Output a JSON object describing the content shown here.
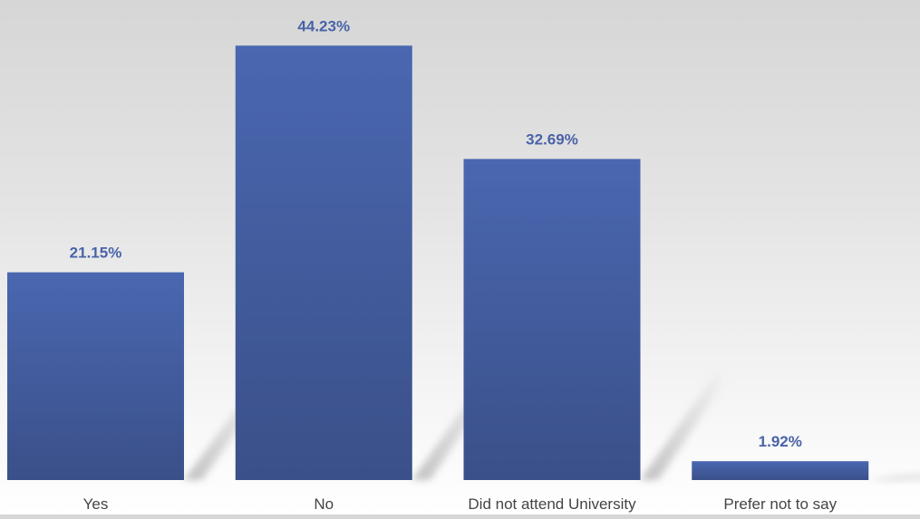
{
  "chart_data": {
    "type": "bar",
    "categories": [
      "Yes",
      "No",
      "Did not attend University",
      "Prefer not to say"
    ],
    "values": [
      21.15,
      44.23,
      32.69,
      1.92
    ],
    "data_labels": [
      "21.15%",
      "44.23%",
      "32.69%",
      "1.92%"
    ],
    "unit": "%",
    "title": "",
    "xlabel": "",
    "ylabel": "",
    "ylim": [
      0,
      45
    ],
    "grid": false,
    "legend": "none",
    "colors": {
      "bar_top": "#4a67b0",
      "bar_bottom": "#3a5089",
      "label": "#4a63a8",
      "category_text": "#444444",
      "shadow": "#9a9a9a"
    }
  }
}
